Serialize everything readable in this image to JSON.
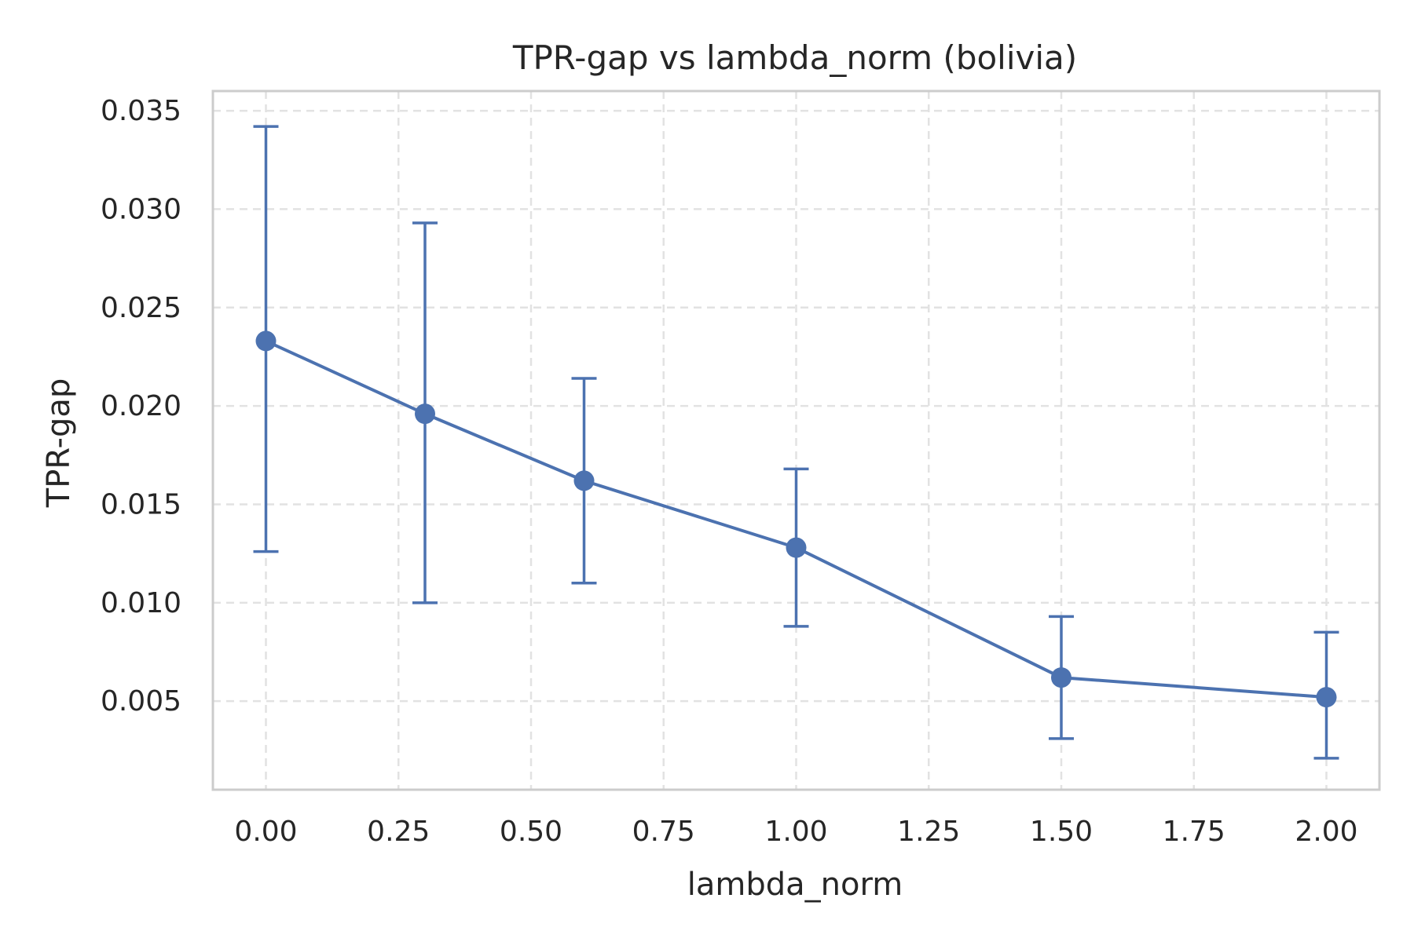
{
  "chart_data": {
    "type": "line",
    "title": "TPR-gap vs lambda_norm (bolivia)",
    "xlabel": "lambda_norm",
    "ylabel": "TPR-gap",
    "x_ticks": [
      "0.00",
      "0.25",
      "0.50",
      "0.75",
      "1.00",
      "1.25",
      "1.50",
      "1.75",
      "2.00"
    ],
    "x_tick_values": [
      0,
      0.25,
      0.5,
      0.75,
      1.0,
      1.25,
      1.5,
      1.75,
      2.0
    ],
    "y_ticks": [
      "0.005",
      "0.010",
      "0.015",
      "0.020",
      "0.025",
      "0.030",
      "0.035"
    ],
    "y_tick_values": [
      0.005,
      0.01,
      0.015,
      0.02,
      0.025,
      0.03,
      0.035
    ],
    "xlim": [
      -0.1,
      2.1
    ],
    "ylim": [
      0.0005,
      0.036
    ],
    "grid": true,
    "grid_style": "dashed",
    "series": [
      {
        "color": "#4c72b0",
        "x": [
          0.0,
          0.3,
          0.6,
          1.0,
          1.5,
          2.0
        ],
        "y": [
          0.0233,
          0.0196,
          0.0162,
          0.0128,
          0.0062,
          0.0052
        ],
        "err_low": [
          0.0126,
          0.01,
          0.011,
          0.0088,
          0.0031,
          0.0021
        ],
        "err_high": [
          0.0342,
          0.0293,
          0.0214,
          0.0168,
          0.0093,
          0.0085
        ]
      }
    ]
  }
}
